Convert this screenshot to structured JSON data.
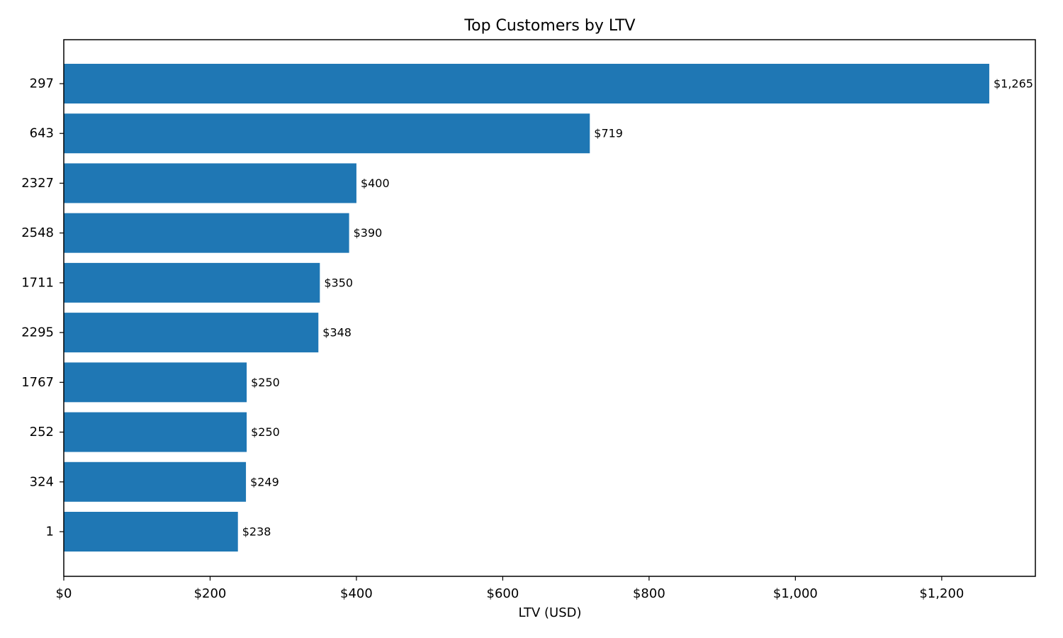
{
  "chart_data": {
    "type": "bar",
    "orientation": "horizontal",
    "title": "Top Customers by LTV",
    "xlabel": "LTV (USD)",
    "ylabel": "",
    "categories": [
      "297",
      "643",
      "2327",
      "2548",
      "1711",
      "2295",
      "1767",
      "252",
      "324",
      "1"
    ],
    "values": [
      1265,
      719,
      400,
      390,
      350,
      348,
      250,
      250,
      249,
      238
    ],
    "value_labels": [
      "$1,265",
      "$719",
      "$400",
      "$390",
      "$350",
      "$348",
      "$250",
      "$250",
      "$249",
      "$238"
    ],
    "xlim": [
      0,
      1328
    ],
    "xticks": [
      0,
      200,
      400,
      600,
      800,
      1000,
      1200
    ],
    "xtick_labels": [
      "$0",
      "$200",
      "$400",
      "$600",
      "$800",
      "$1,000",
      "$1,200"
    ],
    "grid": false,
    "legend": "none",
    "bar_color": "#1f77b4"
  }
}
